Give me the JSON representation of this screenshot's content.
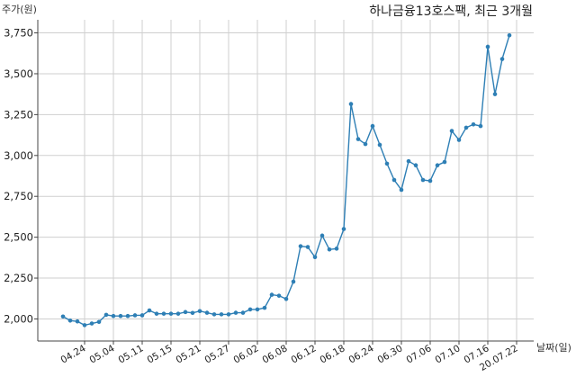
{
  "chart_data": {
    "type": "line",
    "title": "하나금융13호스팩, 최근 3개월",
    "xlabel": "날짜(일)",
    "ylabel": "주가(원)",
    "ylim": [
      1865,
      3830
    ],
    "y_ticks": [
      2000,
      2250,
      2500,
      2750,
      3000,
      3250,
      3500,
      3750
    ],
    "y_tick_labels": [
      "2,000",
      "2,250",
      "2,500",
      "2,750",
      "3,000",
      "3,250",
      "3,500",
      "3,750"
    ],
    "x_tick_labels": [
      "04.24",
      "05.04",
      "05.11",
      "05.15",
      "05.21",
      "05.27",
      "06.02",
      "06.08",
      "06.12",
      "06.18",
      "06.24",
      "06.30",
      "07.06",
      "07.10",
      "07.16",
      "20.07.22"
    ],
    "x_tick_positions": [
      3,
      7,
      11,
      15,
      19,
      23,
      27,
      31,
      35,
      39,
      43,
      47,
      51,
      55,
      59,
      63
    ],
    "grid": true,
    "series_color": "#2e7fb5",
    "series": [
      {
        "values": [
          2015,
          1990,
          1985,
          1962,
          1972,
          1982,
          2025,
          2018,
          2018,
          2018,
          2022,
          2022,
          2052,
          2032,
          2032,
          2032,
          2032,
          2042,
          2037,
          2048,
          2038,
          2028,
          2028,
          2028,
          2038,
          2038,
          2058,
          2058,
          2068,
          2148,
          2142,
          2122,
          2228,
          2445,
          2440,
          2378,
          2510,
          2425,
          2430,
          2550,
          3315,
          3100,
          3070,
          3180,
          3065,
          2950,
          2850,
          2790,
          2965,
          2940,
          2850,
          2845,
          2940,
          2960,
          3150,
          3095,
          3170,
          3190,
          3180,
          3665,
          3375,
          3590,
          3735
        ]
      }
    ]
  }
}
